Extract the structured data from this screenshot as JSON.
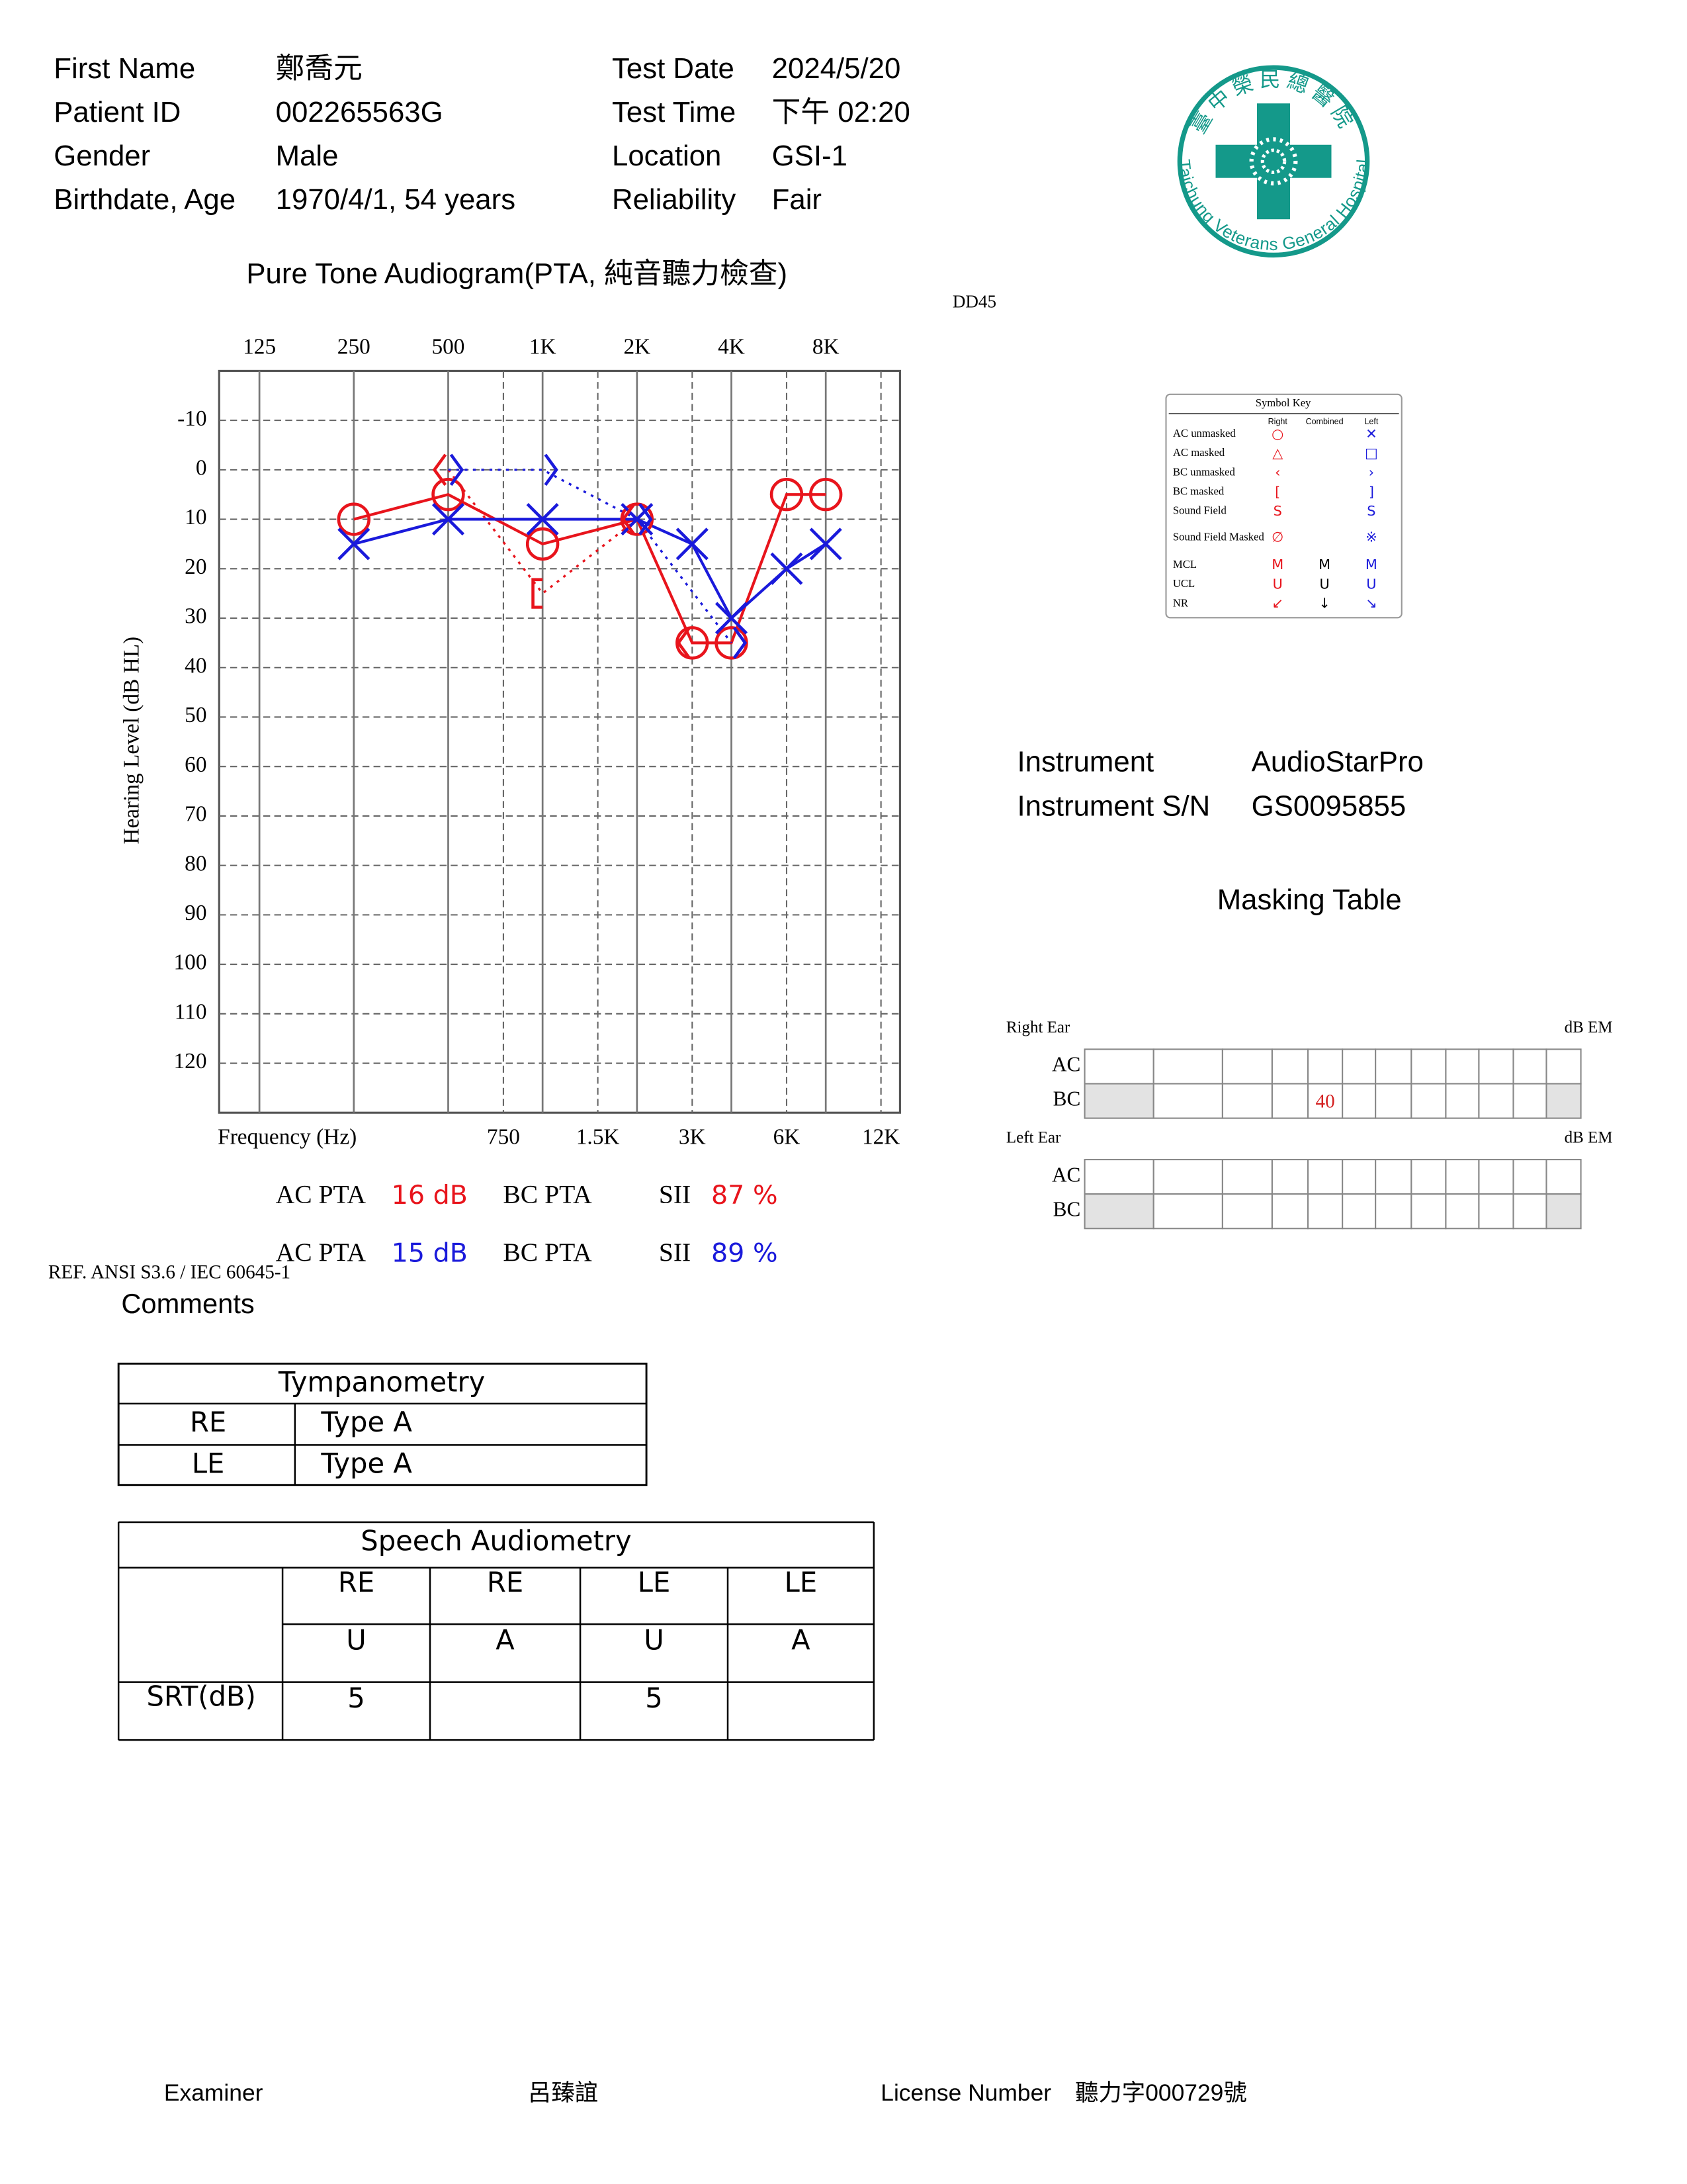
{
  "header": {
    "left": [
      {
        "label": "First Name",
        "value": "鄭喬元"
      },
      {
        "label": "Patient ID",
        "value": "002265563G"
      },
      {
        "label": "Gender",
        "value": "Male"
      },
      {
        "label": "Birthdate, Age",
        "value": "1970/4/1, 54 years"
      }
    ],
    "right": [
      {
        "label": "Test Date",
        "value": "2024/5/20"
      },
      {
        "label": "Test Time",
        "value": "下午 02:20"
      },
      {
        "label": "Location",
        "value": "GSI-1"
      },
      {
        "label": "Reliability",
        "value": "Fair"
      }
    ]
  },
  "logo": {
    "name_zh": "臺中榮民總醫院",
    "name_en": "Taichung Veterans General Hospital"
  },
  "chart_data": {
    "type": "audiogram",
    "title": "Pure Tone Audiogram(PTA, 純音聽力檢查)",
    "annotation": "DD45",
    "y_label": "Hearing Level (dB HL)",
    "x_label": "Frequency (Hz)",
    "x_log": true,
    "xlim": [
      93,
      13800
    ],
    "ylim": [
      130,
      -20
    ],
    "xticks": [
      125,
      250,
      500,
      {
        "value": 1000,
        "label": "1K"
      },
      {
        "value": 2000,
        "label": "2K"
      },
      {
        "value": 4000,
        "label": "4K"
      },
      {
        "value": 8000,
        "label": "8K"
      }
    ],
    "xticks_minor": [
      750,
      {
        "value": 1500,
        "label": "1.5K"
      },
      {
        "value": 3000,
        "label": "3K"
      },
      {
        "value": 6000,
        "label": "6K"
      },
      {
        "value": 12000,
        "label": "12K"
      }
    ],
    "yticks": [
      -10,
      0,
      10,
      20,
      30,
      40,
      50,
      60,
      70,
      80,
      90,
      100,
      110,
      120
    ],
    "grid": true,
    "series": [
      {
        "color": "#e8141c",
        "marker": "O",
        "line": "solid",
        "x": [
          250,
          500,
          1000,
          2000,
          3000,
          4000,
          6000,
          8000
        ],
        "values": [
          10,
          5,
          15,
          10,
          35,
          35,
          5,
          5
        ]
      },
      {
        "color": "#1a1adb",
        "marker": "X",
        "line": "solid",
        "x": [
          250,
          500,
          1000,
          2000,
          3000,
          4000,
          6000,
          8000
        ],
        "values": [
          15,
          10,
          10,
          10,
          15,
          30,
          20,
          15
        ]
      },
      {
        "color": "#e8141c",
        "markers": [
          "<",
          "[",
          "<",
          "<"
        ],
        "line": "dotted",
        "x": [
          500,
          1000,
          2000,
          3000
        ],
        "values": [
          0,
          25,
          10,
          35
        ]
      },
      {
        "color": "#1a1adb",
        "marker": ">",
        "line": "dotted",
        "x": [
          500,
          1000,
          2000,
          4000
        ],
        "values": [
          0,
          0,
          10,
          35
        ]
      }
    ]
  },
  "pta": {
    "rows": [
      {
        "color": "#e8141c",
        "ac_label": "AC PTA",
        "ac": "16 dB",
        "bc_label": "BC PTA",
        "sii_label": "SII",
        "sii": "87 %"
      },
      {
        "color": "#1a1adb",
        "ac_label": "AC PTA",
        "ac": "15 dB",
        "bc_label": "BC PTA",
        "sii_label": "SII",
        "sii": "89 %"
      }
    ]
  },
  "reference": "REF. ANSI S3.6 / IEC 60645-1",
  "comments": "Comments",
  "symbol_key": {
    "title": "Symbol Key",
    "columns": [
      "Right",
      "Combined",
      "Left"
    ],
    "rows": [
      {
        "label": "AC unmasked",
        "symbols": [
          "○",
          null,
          "✕"
        ]
      },
      {
        "label": "AC masked",
        "symbols": [
          "△",
          null,
          "□"
        ]
      },
      {
        "label": "BC unmasked",
        "symbols": [
          "‹",
          null,
          "›"
        ]
      },
      {
        "label": "BC masked",
        "symbols": [
          "[",
          null,
          "]"
        ]
      },
      {
        "label": "Sound Field",
        "symbols": [
          "S",
          null,
          "S"
        ]
      },
      {
        "label": "Sound Field Masked",
        "symbols": [
          "∅",
          null,
          "※"
        ]
      },
      {
        "label": "MCL",
        "symbols": [
          "M",
          "M",
          "M"
        ]
      },
      {
        "label": "UCL",
        "symbols": [
          "U",
          "U",
          "U"
        ]
      },
      {
        "label": "NR",
        "symbols": [
          "↙",
          "↓",
          "↘"
        ]
      }
    ]
  },
  "instrument": [
    {
      "label": "Instrument",
      "value": "AudioStarPro"
    },
    {
      "label": "Instrument S/N",
      "value": "GS0095855"
    }
  ],
  "masking": {
    "title": "Masking Table",
    "ears": [
      {
        "label": "Right Ear",
        "unit": "dB EM",
        "rows": [
          {
            "label": "AC",
            "cells": [
              null,
              null,
              null,
              null,
              null,
              null,
              null,
              null,
              null,
              null,
              null,
              null
            ]
          },
          {
            "label": "BC",
            "cells": [
              null,
              null,
              null,
              null,
              40,
              null,
              null,
              null,
              null,
              null,
              null,
              null
            ]
          }
        ]
      },
      {
        "label": "Left Ear",
        "unit": "dB EM",
        "rows": [
          {
            "label": "AC",
            "cells": [
              null,
              null,
              null,
              null,
              null,
              null,
              null,
              null,
              null,
              null,
              null,
              null
            ]
          },
          {
            "label": "BC",
            "cells": [
              null,
              null,
              null,
              null,
              null,
              null,
              null,
              null,
              null,
              null,
              null,
              null
            ]
          }
        ]
      }
    ]
  },
  "tympanometry": {
    "title": "Tympanometry",
    "rows": [
      [
        "RE",
        "Type A"
      ],
      [
        "LE",
        "Type A"
      ]
    ]
  },
  "speech": {
    "title": "Speech Audiometry",
    "header": [
      [
        "RE",
        "RE",
        "LE",
        "LE"
      ],
      [
        "U",
        "A",
        "U",
        "A"
      ]
    ],
    "rows": [
      {
        "label": "SRT(dB)",
        "cells": [
          5,
          null,
          5,
          null
        ]
      }
    ]
  },
  "footer": {
    "examiner_label": "Examiner",
    "examiner": "呂臻誼",
    "license_label": "License Number",
    "license": "聽力字000729號"
  }
}
